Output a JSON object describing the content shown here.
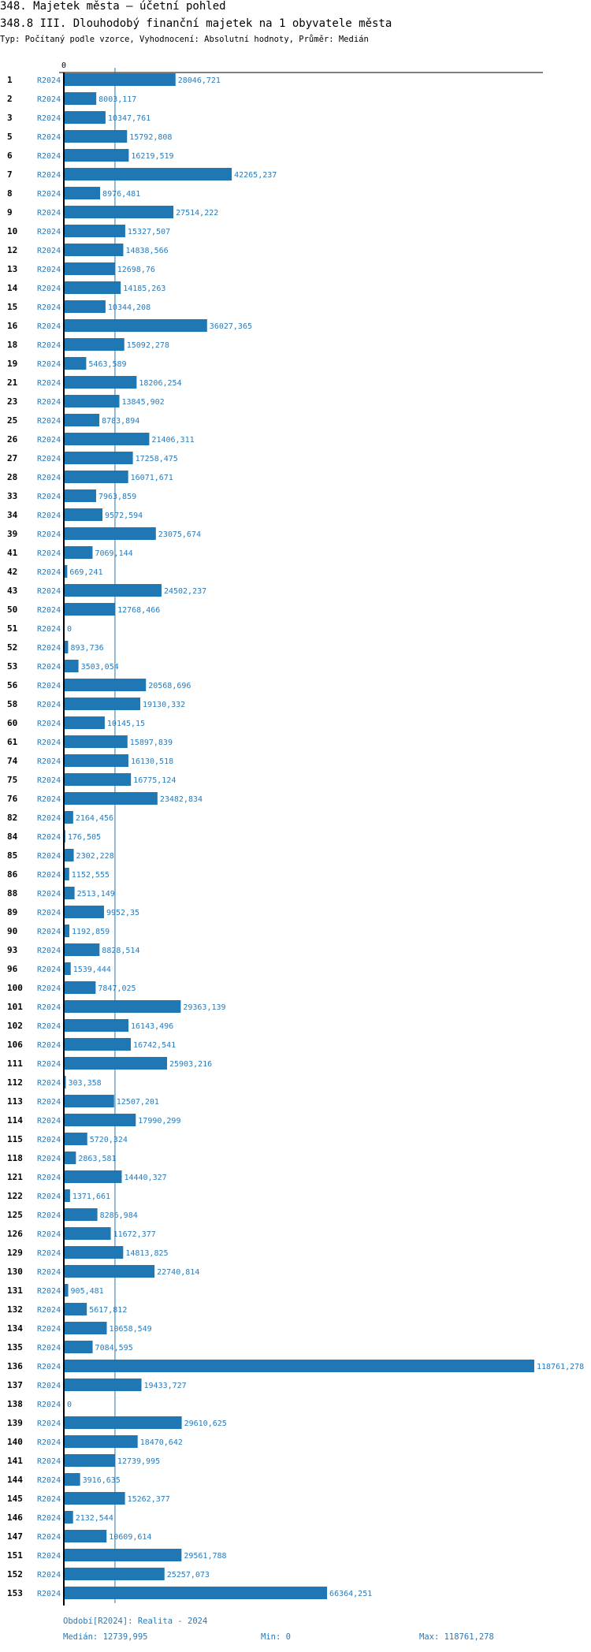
{
  "header": {
    "title": "348. Majetek města – účetní pohled",
    "subtitle": "348.8 III. Dlouhodobý finanční majetek na 1 obyvatele města",
    "description": "Typ: Počítaný podle vzorce, Vyhodnocení: Absolutní hodnoty, Průměr: Medián"
  },
  "chart_data": {
    "type": "bar",
    "orientation": "horizontal",
    "x_tick_label": "0",
    "xlim": [
      0,
      118761.278
    ],
    "median": 12739.995,
    "series_label": "R2024",
    "colors": {
      "bar": "#1f77b4",
      "value_text": "#2a7ab8",
      "median_line": "#1f77b4"
    },
    "categories": [
      "1",
      "2",
      "3",
      "5",
      "6",
      "7",
      "8",
      "9",
      "10",
      "12",
      "13",
      "14",
      "15",
      "16",
      "18",
      "19",
      "21",
      "23",
      "25",
      "26",
      "27",
      "28",
      "33",
      "34",
      "39",
      "41",
      "42",
      "43",
      "50",
      "51",
      "52",
      "53",
      "56",
      "58",
      "60",
      "61",
      "74",
      "75",
      "76",
      "82",
      "84",
      "85",
      "86",
      "88",
      "89",
      "90",
      "93",
      "96",
      "100",
      "101",
      "102",
      "106",
      "111",
      "112",
      "113",
      "114",
      "115",
      "118",
      "121",
      "122",
      "125",
      "126",
      "129",
      "130",
      "131",
      "132",
      "134",
      "135",
      "136",
      "137",
      "138",
      "139",
      "140",
      "141",
      "144",
      "145",
      "146",
      "147",
      "151",
      "152",
      "153"
    ],
    "values": [
      "28046,721",
      "8003,117",
      "10347,761",
      "15792,808",
      "16219,519",
      "42265,237",
      "8976,481",
      "27514,222",
      "15327,507",
      "14838,566",
      "12698,76",
      "14185,263",
      "10344,208",
      "36027,365",
      "15092,278",
      "5463,589",
      "18206,254",
      "13845,902",
      "8783,894",
      "21406,311",
      "17258,475",
      "16071,671",
      "7963,859",
      "9572,594",
      "23075,674",
      "7069,144",
      "669,241",
      "24502,237",
      "12768,466",
      "0",
      "893,736",
      "3503,054",
      "20568,696",
      "19130,332",
      "10145,15",
      "15897,839",
      "16130,518",
      "16775,124",
      "23482,834",
      "2164,456",
      "176,505",
      "2302,228",
      "1152,555",
      "2513,149",
      "9952,35",
      "1192,859",
      "8828,514",
      "1539,444",
      "7847,025",
      "29363,139",
      "16143,496",
      "16742,541",
      "25903,216",
      "303,358",
      "12507,201",
      "17990,299",
      "5720,324",
      "2863,581",
      "14440,327",
      "1371,661",
      "8286,984",
      "11672,377",
      "14813,825",
      "22740,814",
      "905,481",
      "5617,812",
      "10658,549",
      "7084,595",
      "118761,278",
      "19433,727",
      "0",
      "29610,625",
      "18470,642",
      "12739,995",
      "3916,635",
      "15262,377",
      "2132,544",
      "10609,614",
      "29561,788",
      "25257,073",
      "66364,251"
    ]
  },
  "footer": {
    "period": "Období[R2024]: Realita - 2024",
    "median": "Medián: 12739,995",
    "min": "Min: 0",
    "max": "Max: 118761,278"
  }
}
